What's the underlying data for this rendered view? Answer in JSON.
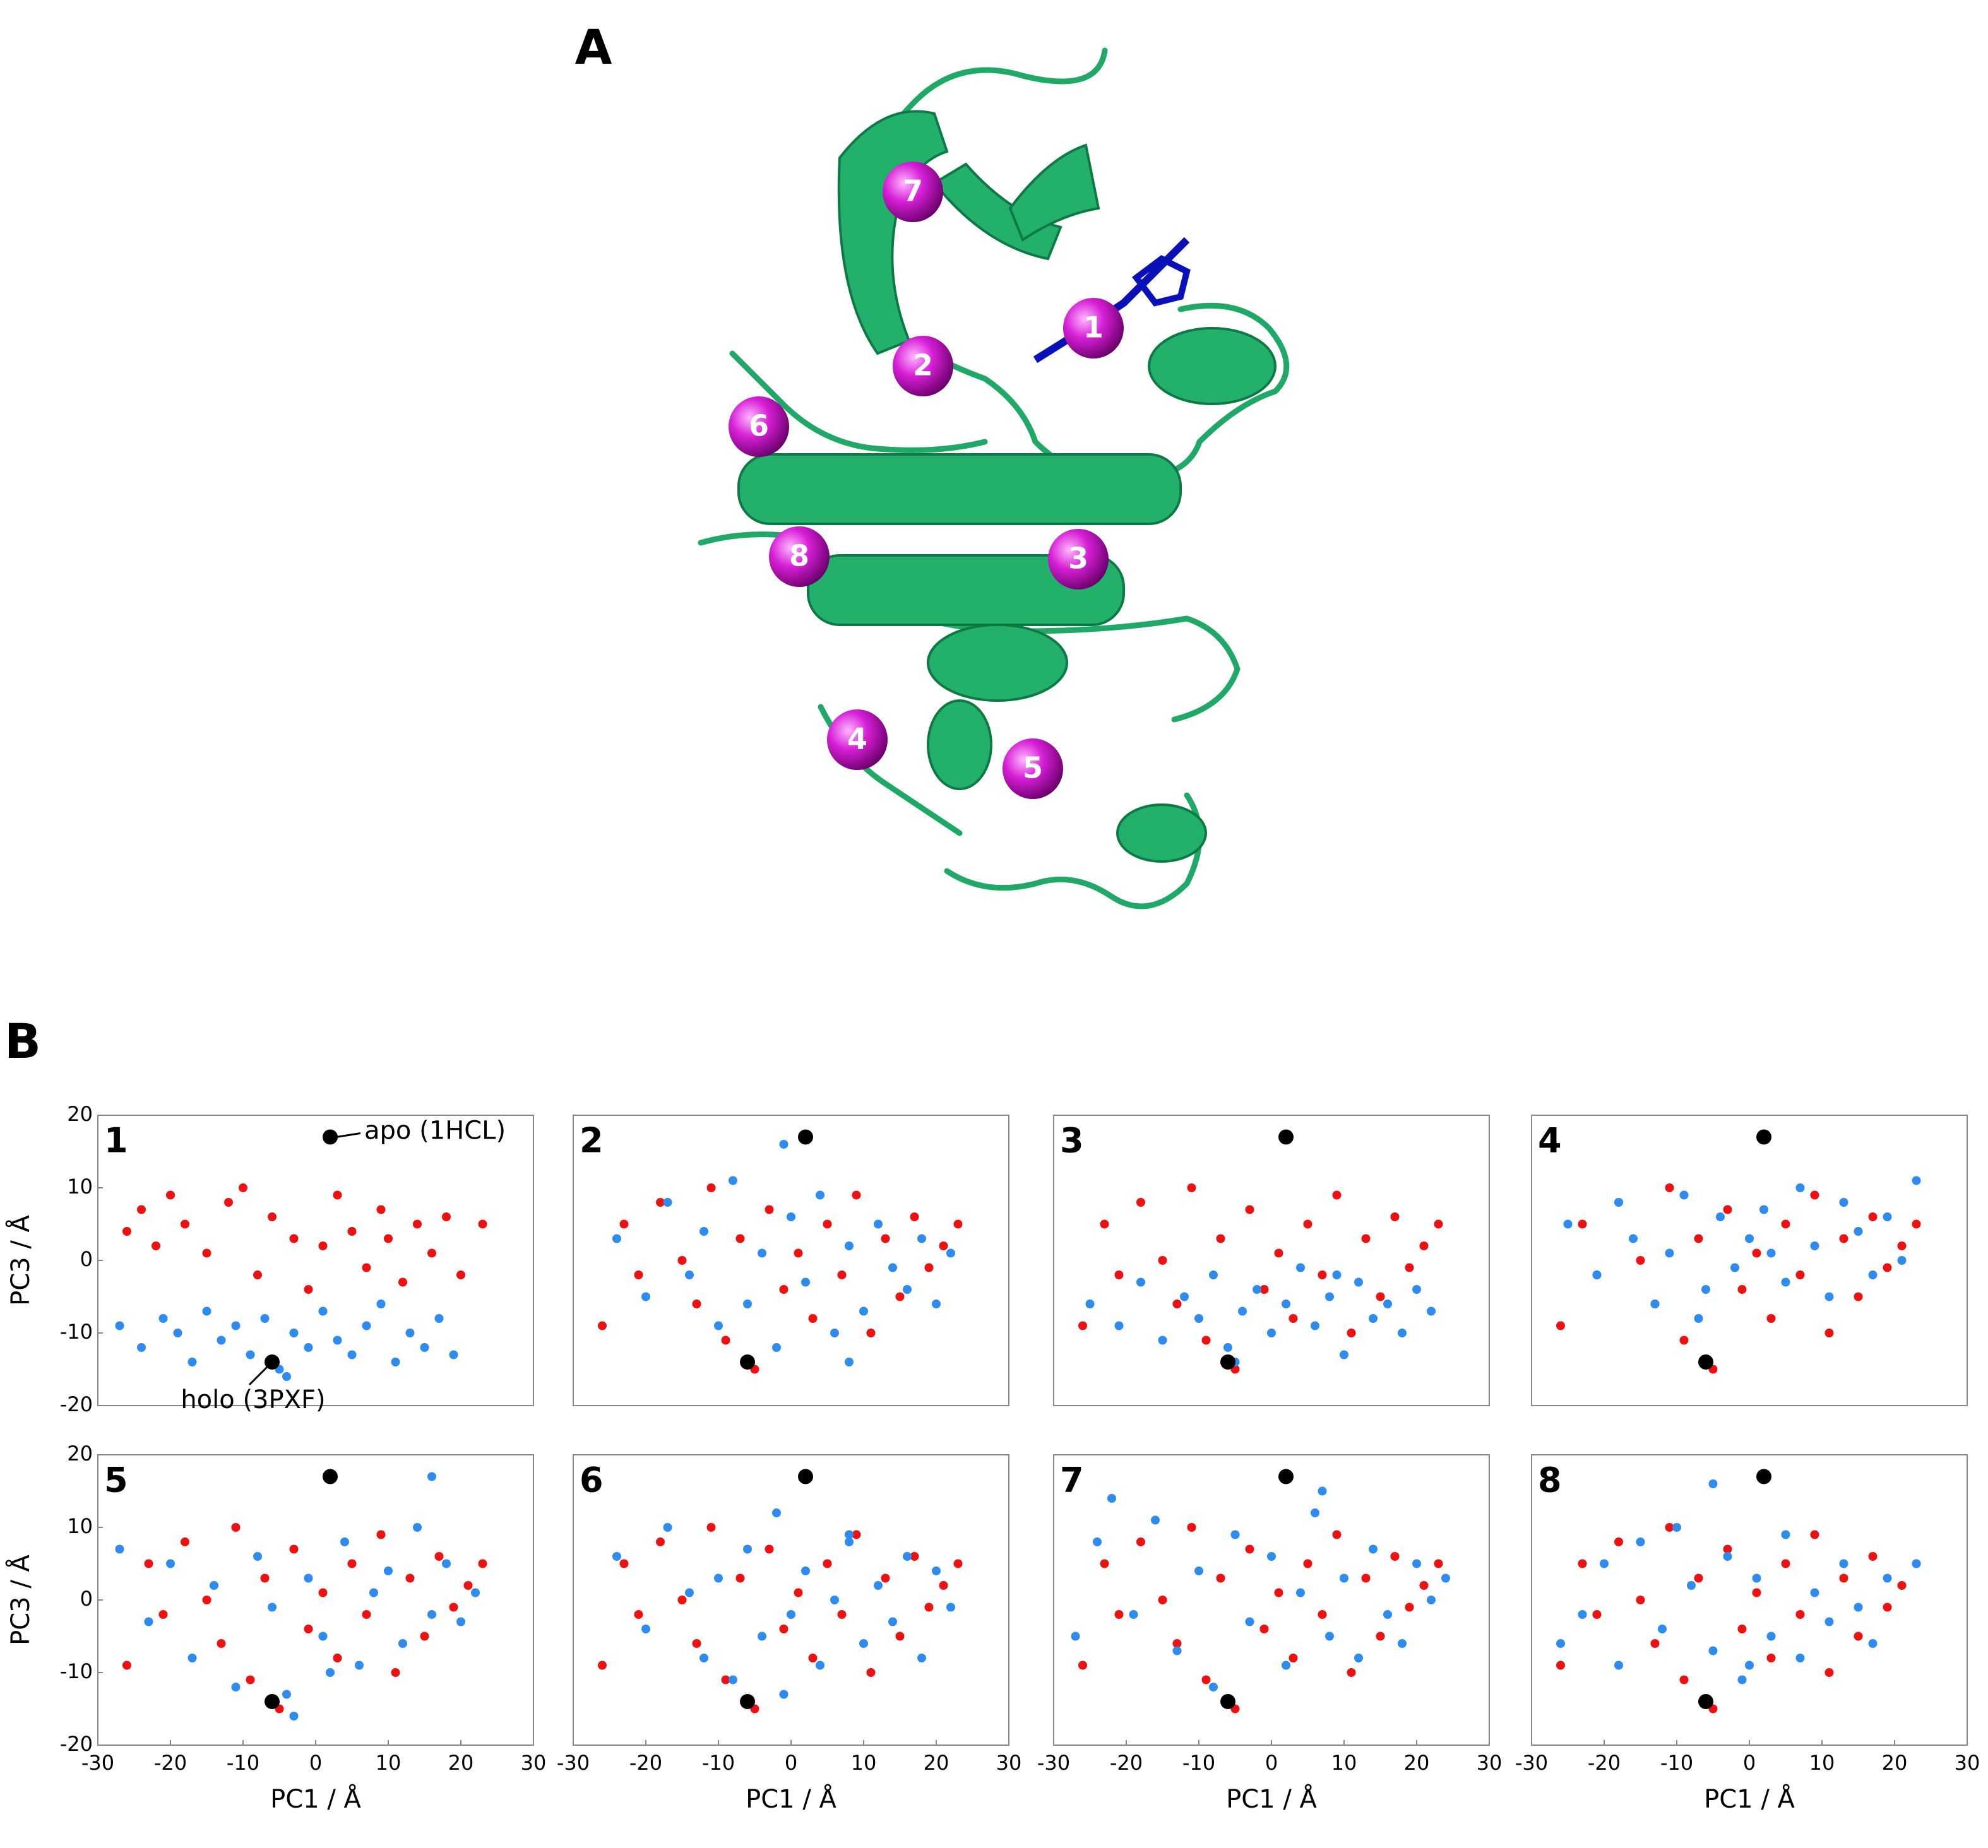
{
  "figure": {
    "panel_a": {
      "label": "A",
      "sites": [
        "1",
        "2",
        "3",
        "4",
        "5",
        "6",
        "7",
        "8"
      ]
    },
    "panel_b": {
      "label": "B"
    }
  },
  "chart_data": [
    {
      "type": "scatter",
      "title": "1",
      "ylabel": "PC3 / Å",
      "xlim": [
        -30,
        30
      ],
      "ylim": [
        -20,
        20
      ],
      "yticks": [
        -20,
        -10,
        0,
        10,
        20
      ],
      "annotations": [
        "apo (1HCL)",
        "holo (3PXF)"
      ],
      "series": [
        {
          "color": "#ee1111",
          "x": [
            -26,
            -24,
            -22,
            -20,
            -18,
            -15,
            -12,
            -10,
            -8,
            -6,
            -3,
            -1,
            1,
            3,
            5,
            7,
            9,
            10,
            12,
            14,
            16,
            18,
            20,
            23
          ],
          "values": [
            4,
            7,
            2,
            9,
            5,
            1,
            8,
            10,
            -2,
            6,
            3,
            -4,
            2,
            9,
            4,
            -1,
            7,
            3,
            -3,
            5,
            1,
            6,
            -2,
            5
          ]
        },
        {
          "color": "#2e8bf0",
          "x": [
            -27,
            -24,
            -21,
            -19,
            -17,
            -15,
            -13,
            -11,
            -9,
            -7,
            -5,
            -3,
            -1,
            1,
            3,
            5,
            7,
            9,
            11,
            13,
            15,
            17,
            19,
            -4
          ],
          "values": [
            -9,
            -12,
            -8,
            -10,
            -14,
            -7,
            -11,
            -9,
            -13,
            -8,
            -15,
            -10,
            -12,
            -7,
            -11,
            -13,
            -9,
            -6,
            -14,
            -10,
            -12,
            -8,
            -13,
            -16
          ]
        },
        {
          "color": "#000000",
          "x": [
            2,
            -6
          ],
          "values": [
            17,
            -14
          ]
        }
      ]
    },
    {
      "type": "scatter",
      "title": "2",
      "xlim": [
        -30,
        30
      ],
      "ylim": [
        -20,
        20
      ],
      "series": [
        {
          "color": "#ee1111",
          "x": [
            -26,
            -23,
            -21,
            -18,
            -15,
            -13,
            -11,
            -9,
            -7,
            -5,
            -3,
            -1,
            1,
            3,
            5,
            7,
            9,
            11,
            13,
            15,
            17,
            19,
            21,
            23
          ],
          "values": [
            -9,
            5,
            -2,
            8,
            0,
            -6,
            10,
            -11,
            3,
            -15,
            7,
            -4,
            1,
            -8,
            5,
            -2,
            9,
            -10,
            3,
            -5,
            6,
            -1,
            2,
            5
          ]
        },
        {
          "color": "#2e8bf0",
          "x": [
            -24,
            -20,
            -17,
            -14,
            -12,
            -10,
            -8,
            -6,
            -4,
            -2,
            0,
            2,
            4,
            6,
            8,
            10,
            12,
            14,
            16,
            18,
            20,
            22,
            -1,
            8
          ],
          "values": [
            3,
            -5,
            8,
            -2,
            4,
            -9,
            11,
            -6,
            1,
            -12,
            6,
            -3,
            9,
            -10,
            2,
            -7,
            5,
            -1,
            -4,
            3,
            -6,
            1,
            16,
            -14
          ]
        },
        {
          "color": "#000000",
          "x": [
            2,
            -6
          ],
          "values": [
            17,
            -14
          ]
        }
      ]
    },
    {
      "type": "scatter",
      "title": "3",
      "xlim": [
        -30,
        30
      ],
      "ylim": [
        -20,
        20
      ],
      "series": [
        {
          "color": "#ee1111",
          "x": [
            -26,
            -23,
            -21,
            -18,
            -15,
            -13,
            -11,
            -9,
            -7,
            -5,
            -3,
            -1,
            1,
            3,
            5,
            7,
            9,
            11,
            13,
            15,
            17,
            19,
            21,
            23
          ],
          "values": [
            -9,
            5,
            -2,
            8,
            0,
            -6,
            10,
            -11,
            3,
            -15,
            7,
            -4,
            1,
            -8,
            5,
            -2,
            9,
            -10,
            3,
            -5,
            6,
            -1,
            2,
            5
          ]
        },
        {
          "color": "#2e8bf0",
          "x": [
            -25,
            -21,
            -18,
            -15,
            -12,
            -10,
            -8,
            -6,
            -4,
            -2,
            0,
            2,
            4,
            6,
            8,
            10,
            12,
            14,
            16,
            18,
            20,
            22,
            -5,
            9
          ],
          "values": [
            -6,
            -9,
            -3,
            -11,
            -5,
            -8,
            -2,
            -12,
            -7,
            -4,
            -10,
            -6,
            -1,
            -9,
            -5,
            -13,
            -3,
            -8,
            -6,
            -10,
            -4,
            -7,
            -14,
            -2
          ]
        },
        {
          "color": "#000000",
          "x": [
            2,
            -6
          ],
          "values": [
            17,
            -14
          ]
        }
      ]
    },
    {
      "type": "scatter",
      "title": "4",
      "xlim": [
        -30,
        30
      ],
      "ylim": [
        -20,
        20
      ],
      "series": [
        {
          "color": "#ee1111",
          "x": [
            -26,
            -23,
            -21,
            -18,
            -15,
            -13,
            -11,
            -9,
            -7,
            -5,
            -3,
            -1,
            1,
            3,
            5,
            7,
            9,
            11,
            13,
            15,
            17,
            19,
            21,
            23
          ],
          "values": [
            -9,
            5,
            -2,
            8,
            0,
            -6,
            10,
            -11,
            3,
            -15,
            7,
            -4,
            1,
            -8,
            5,
            -2,
            9,
            -10,
            3,
            -5,
            6,
            -1,
            2,
            5
          ]
        },
        {
          "color": "#2e8bf0",
          "x": [
            -25,
            -21,
            -18,
            -16,
            -13,
            -11,
            -9,
            -6,
            -4,
            -2,
            0,
            2,
            5,
            7,
            9,
            11,
            13,
            15,
            17,
            19,
            21,
            23,
            -7,
            3
          ],
          "values": [
            5,
            -2,
            8,
            3,
            -6,
            1,
            9,
            -4,
            6,
            -1,
            3,
            7,
            -3,
            10,
            2,
            -5,
            8,
            4,
            -2,
            6,
            0,
            11,
            -8,
            1
          ]
        },
        {
          "color": "#000000",
          "x": [
            2,
            -6
          ],
          "values": [
            17,
            -14
          ]
        }
      ]
    },
    {
      "type": "scatter",
      "title": "5",
      "xlabel": "PC1 / Å",
      "ylabel": "PC3 / Å",
      "xlim": [
        -30,
        30
      ],
      "ylim": [
        -20,
        20
      ],
      "xticks": [
        -30,
        -20,
        -10,
        0,
        10,
        20,
        30
      ],
      "yticks": [
        -20,
        -10,
        0,
        10,
        20
      ],
      "series": [
        {
          "color": "#ee1111",
          "x": [
            -26,
            -23,
            -21,
            -18,
            -15,
            -13,
            -11,
            -9,
            -7,
            -5,
            -3,
            -1,
            1,
            3,
            5,
            7,
            9,
            11,
            13,
            15,
            17,
            19,
            21,
            23
          ],
          "values": [
            -9,
            5,
            -2,
            8,
            0,
            -6,
            10,
            -11,
            3,
            -15,
            7,
            -4,
            1,
            -8,
            5,
            -2,
            9,
            -10,
            3,
            -5,
            6,
            -1,
            2,
            5
          ]
        },
        {
          "color": "#2e8bf0",
          "x": [
            -27,
            -23,
            -20,
            -17,
            -14,
            -11,
            -8,
            -6,
            -3,
            -1,
            1,
            4,
            6,
            8,
            10,
            12,
            14,
            16,
            18,
            20,
            22,
            -4,
            16,
            2
          ],
          "values": [
            7,
            -3,
            5,
            -8,
            2,
            -12,
            6,
            -1,
            -16,
            3,
            -5,
            8,
            -9,
            1,
            4,
            -6,
            10,
            -2,
            5,
            -3,
            1,
            -13,
            17,
            -10
          ]
        },
        {
          "color": "#000000",
          "x": [
            2,
            -6
          ],
          "values": [
            17,
            -14
          ]
        }
      ]
    },
    {
      "type": "scatter",
      "title": "6",
      "xlabel": "PC1 / Å",
      "xlim": [
        -30,
        30
      ],
      "ylim": [
        -20,
        20
      ],
      "xticks": [
        -30,
        -20,
        -10,
        0,
        10,
        20,
        30
      ],
      "series": [
        {
          "color": "#ee1111",
          "x": [
            -26,
            -23,
            -21,
            -18,
            -15,
            -13,
            -11,
            -9,
            -7,
            -5,
            -3,
            -1,
            1,
            3,
            5,
            7,
            9,
            11,
            13,
            15,
            17,
            19,
            21,
            23
          ],
          "values": [
            -9,
            5,
            -2,
            8,
            0,
            -6,
            10,
            -11,
            3,
            -15,
            7,
            -4,
            1,
            -8,
            5,
            -2,
            9,
            -10,
            3,
            -5,
            6,
            -1,
            2,
            5
          ]
        },
        {
          "color": "#2e8bf0",
          "x": [
            -24,
            -20,
            -17,
            -14,
            -12,
            -10,
            -8,
            -6,
            -4,
            -2,
            0,
            2,
            4,
            6,
            8,
            10,
            12,
            14,
            16,
            18,
            20,
            22,
            -1,
            8
          ],
          "values": [
            6,
            -4,
            10,
            1,
            -8,
            3,
            -11,
            7,
            -5,
            12,
            -2,
            4,
            -9,
            0,
            8,
            -6,
            2,
            -3,
            6,
            -8,
            4,
            -1,
            -13,
            9
          ]
        },
        {
          "color": "#000000",
          "x": [
            2,
            -6
          ],
          "values": [
            17,
            -14
          ]
        }
      ]
    },
    {
      "type": "scatter",
      "title": "7",
      "xlabel": "PC1 / Å",
      "xlim": [
        -30,
        30
      ],
      "ylim": [
        -20,
        20
      ],
      "xticks": [
        -30,
        -20,
        -10,
        0,
        10,
        20,
        30
      ],
      "series": [
        {
          "color": "#ee1111",
          "x": [
            -26,
            -23,
            -21,
            -18,
            -15,
            -13,
            -11,
            -9,
            -7,
            -5,
            -3,
            -1,
            1,
            3,
            5,
            7,
            9,
            11,
            13,
            15,
            17,
            19,
            21,
            23
          ],
          "values": [
            -9,
            5,
            -2,
            8,
            0,
            -6,
            10,
            -11,
            3,
            -15,
            7,
            -4,
            1,
            -8,
            5,
            -2,
            9,
            -10,
            3,
            -5,
            6,
            -1,
            2,
            5
          ]
        },
        {
          "color": "#2e8bf0",
          "x": [
            -27,
            -24,
            -22,
            -19,
            -16,
            -13,
            -10,
            -8,
            -5,
            -3,
            0,
            2,
            4,
            6,
            8,
            10,
            12,
            14,
            16,
            18,
            20,
            22,
            24,
            7
          ],
          "values": [
            -5,
            8,
            14,
            -2,
            11,
            -7,
            4,
            -12,
            9,
            -3,
            6,
            -9,
            1,
            12,
            -5,
            3,
            -8,
            7,
            -2,
            -6,
            5,
            0,
            3,
            15
          ]
        },
        {
          "color": "#000000",
          "x": [
            2,
            -6
          ],
          "values": [
            17,
            -14
          ]
        }
      ]
    },
    {
      "type": "scatter",
      "title": "8",
      "xlabel": "PC1 / Å",
      "xlim": [
        -30,
        30
      ],
      "ylim": [
        -20,
        20
      ],
      "xticks": [
        -30,
        -20,
        -10,
        0,
        10,
        20,
        30
      ],
      "series": [
        {
          "color": "#ee1111",
          "x": [
            -26,
            -23,
            -21,
            -18,
            -15,
            -13,
            -11,
            -9,
            -7,
            -5,
            -3,
            -1,
            1,
            3,
            5,
            7,
            9,
            11,
            13,
            15,
            17,
            19,
            21,
            23
          ],
          "values": [
            -9,
            5,
            -2,
            8,
            0,
            -6,
            10,
            -11,
            3,
            -15,
            7,
            -4,
            1,
            -8,
            5,
            -2,
            9,
            -10,
            3,
            -5,
            6,
            -1,
            2,
            5
          ]
        },
        {
          "color": "#2e8bf0",
          "x": [
            -26,
            -23,
            -20,
            -18,
            -15,
            -12,
            -10,
            -8,
            -5,
            -3,
            -1,
            1,
            3,
            5,
            7,
            9,
            11,
            13,
            15,
            17,
            19,
            23,
            -5,
            0
          ],
          "values": [
            -6,
            -2,
            5,
            -9,
            8,
            -4,
            10,
            2,
            -7,
            6,
            -11,
            3,
            -5,
            9,
            -8,
            1,
            -3,
            5,
            -1,
            -6,
            3,
            5,
            16,
            -9
          ]
        },
        {
          "color": "#000000",
          "x": [
            2,
            -6
          ],
          "values": [
            17,
            -14
          ]
        }
      ]
    }
  ]
}
